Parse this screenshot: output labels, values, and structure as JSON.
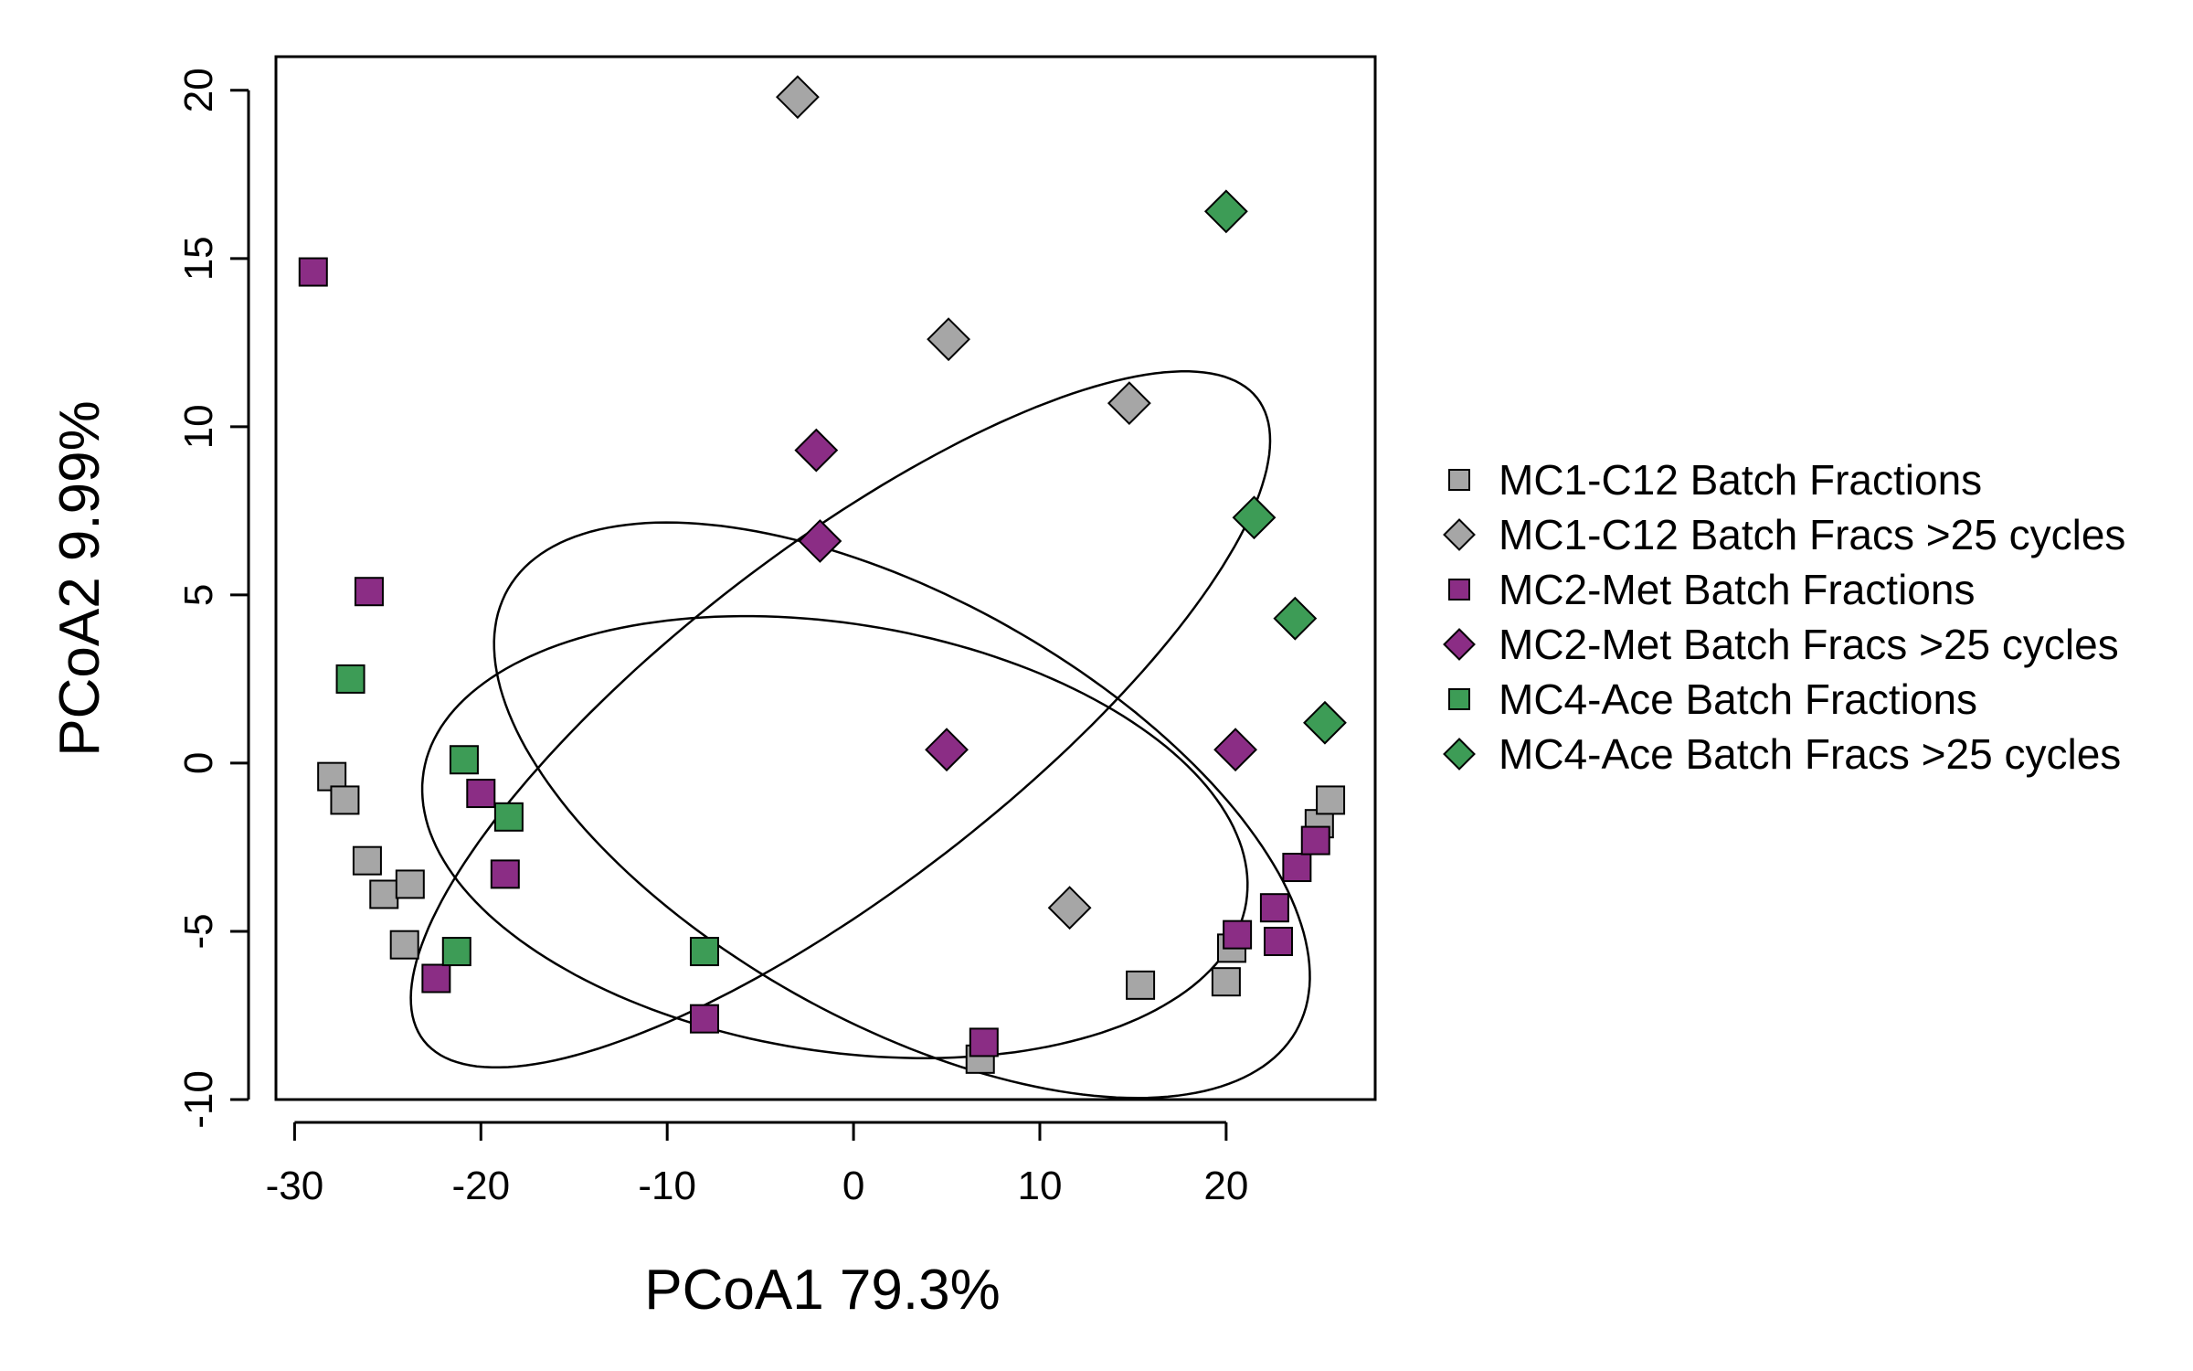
{
  "chart_data": {
    "type": "scatter",
    "xlabel": "PCoA1 79.3%",
    "ylabel": "PCoA2 9.99%",
    "xlim": [
      -31,
      28
    ],
    "ylim": [
      -10,
      21
    ],
    "xticks": [
      -30,
      -20,
      -10,
      0,
      10,
      20
    ],
    "yticks": [
      -10,
      -5,
      0,
      5,
      10,
      15,
      20
    ],
    "xtick_labels": [
      "-30",
      "-20",
      "-10",
      "0",
      "10",
      "20"
    ],
    "ytick_labels": [
      "-10",
      "-5",
      "0",
      "5",
      "10",
      "15",
      "20"
    ],
    "legend_position": "right",
    "series": [
      {
        "name": "MC1-C12 Batch Fractions",
        "marker": "square",
        "color": "#a6a6a6",
        "points": [
          [
            -28,
            -0.4
          ],
          [
            -27.3,
            -1.1
          ],
          [
            -26.1,
            -2.9
          ],
          [
            -25.2,
            -3.9
          ],
          [
            -23.8,
            -3.6
          ],
          [
            -24.1,
            -5.4
          ],
          [
            6.8,
            -8.8
          ],
          [
            15.4,
            -6.6
          ],
          [
            20,
            -6.5
          ],
          [
            20.3,
            -5.5
          ],
          [
            25,
            -1.8
          ],
          [
            25.6,
            -1.1
          ]
        ]
      },
      {
        "name": "MC1-C12 Batch Fracs >25 cycles",
        "marker": "diamond",
        "color": "#a6a6a6",
        "points": [
          [
            -3,
            19.8
          ],
          [
            5.1,
            12.6
          ],
          [
            14.8,
            10.7
          ],
          [
            11.6,
            -4.3
          ]
        ]
      },
      {
        "name": "MC2-Met Batch Fractions",
        "marker": "square",
        "color": "#8b2d85",
        "points": [
          [
            -29,
            14.6
          ],
          [
            -26,
            5.1
          ],
          [
            -20,
            -0.9
          ],
          [
            -18.7,
            -3.3
          ],
          [
            -22.4,
            -6.4
          ],
          [
            -8,
            -7.6
          ],
          [
            7,
            -8.3
          ],
          [
            20.6,
            -5.1
          ],
          [
            22.6,
            -4.3
          ],
          [
            22.8,
            -5.3
          ],
          [
            23.8,
            -3.1
          ],
          [
            24.8,
            -2.3
          ]
        ]
      },
      {
        "name": "MC2-Met Batch Fracs >25 cycles",
        "marker": "diamond",
        "color": "#8b2d85",
        "points": [
          [
            -2,
            9.3
          ],
          [
            -1.8,
            6.6
          ],
          [
            5,
            0.4
          ],
          [
            20.5,
            0.4
          ]
        ]
      },
      {
        "name": "MC4-Ace Batch Fractions",
        "marker": "square",
        "color": "#3d9c56",
        "points": [
          [
            -27,
            2.5
          ],
          [
            -20.9,
            0.1
          ],
          [
            -18.5,
            -1.6
          ],
          [
            -21.3,
            -5.6
          ],
          [
            -8,
            -5.6
          ]
        ]
      },
      {
        "name": "MC4-Ace Batch Fracs >25 cycles",
        "marker": "diamond",
        "color": "#3d9c56",
        "points": [
          [
            20,
            16.4
          ],
          [
            21.5,
            7.3
          ],
          [
            23.7,
            4.3
          ],
          [
            25.3,
            1.2
          ]
        ]
      }
    ],
    "ellipses": [
      {
        "cx": -0.7,
        "cy": 1.3,
        "rx": 24.6,
        "ry": 5.8,
        "angle_deg": 21
      },
      {
        "cx": 2.6,
        "cy": -1.4,
        "rx": 22.5,
        "ry": 6.8,
        "angle_deg": -14
      },
      {
        "cx": -1,
        "cy": -2.2,
        "rx": 22.2,
        "ry": 6.4,
        "angle_deg": -4
      }
    ]
  }
}
